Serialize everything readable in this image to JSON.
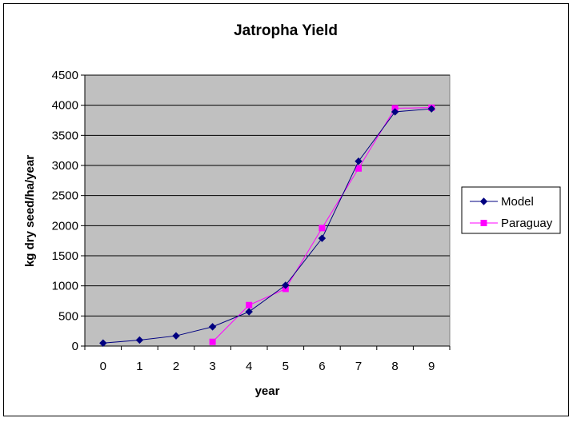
{
  "chart_data": {
    "type": "line",
    "title": "Jatropha Yield",
    "xlabel": "year",
    "ylabel": "kg dry seed/ha/year",
    "categories": [
      "0",
      "1",
      "2",
      "3",
      "4",
      "5",
      "6",
      "7",
      "8",
      "9"
    ],
    "ylim": [
      0,
      4500
    ],
    "yticks": [
      0,
      500,
      1000,
      1500,
      2000,
      2500,
      3000,
      3500,
      4000,
      4500
    ],
    "yticks_labels": [
      "0",
      "500",
      "1000",
      "1500",
      "2000",
      "2500",
      "3000",
      "3500",
      "4000",
      "4500"
    ],
    "grid": true,
    "legend_position": "right",
    "plot_background": "#c0c0c0",
    "series": [
      {
        "name": "Model",
        "color": "#000080",
        "marker": "diamond",
        "values": [
          50,
          100,
          170,
          320,
          570,
          1010,
          1790,
          3070,
          3890,
          3940
        ]
      },
      {
        "name": "Paraguay",
        "color": "#ff00ff",
        "marker": "square",
        "values": [
          null,
          null,
          null,
          70,
          680,
          950,
          1960,
          2950,
          3950,
          3960
        ]
      }
    ]
  }
}
